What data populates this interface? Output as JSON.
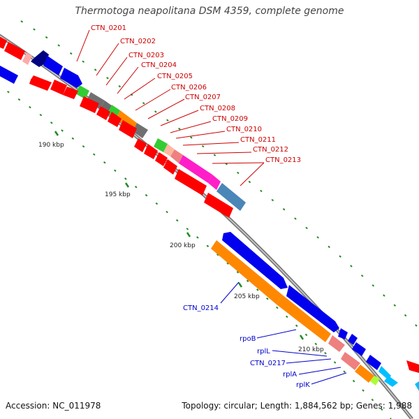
{
  "title": "Thermotoga neapolitana DSM 4359, complete genome",
  "footer": {
    "accession": "Accession: NC_011978",
    "topology": "Topology: circular; Length: 1,884,562 bp; Genes: 1,988"
  },
  "scale_labels": [
    "190 kbp",
    "195 kbp",
    "200 kbp",
    "205 kbp",
    "210 kbp"
  ],
  "gene_labels_top": [
    "CTN_0201",
    "CTN_0202",
    "CTN_0203",
    "CTN_0204",
    "CTN_0205",
    "CTN_0206",
    "CTN_0207",
    "CTN_0208",
    "CTN_0209",
    "CTN_0210",
    "CTN_0211",
    "CTN_0212",
    "CTN_0213"
  ],
  "gene_labels_bottom": [
    "CTN_0214",
    "rpoB",
    "rplL",
    "CTN_0217",
    "rplA",
    "rplK"
  ],
  "colors": {
    "red": "#ff0000",
    "blue": "#0000ee",
    "navy": "#000080",
    "gray": "#707070",
    "green": "#33cc33",
    "orange": "#ff8800",
    "pink": "#ff1ec8",
    "salmon": "#ee8080",
    "steel": "#4a86b8",
    "cyan": "#00bfff",
    "lime": "#aaff33",
    "backbone": "#8a8a8a",
    "tick": "#228b22",
    "label_red": "#cc0000",
    "label_blue": "#0000cc"
  }
}
